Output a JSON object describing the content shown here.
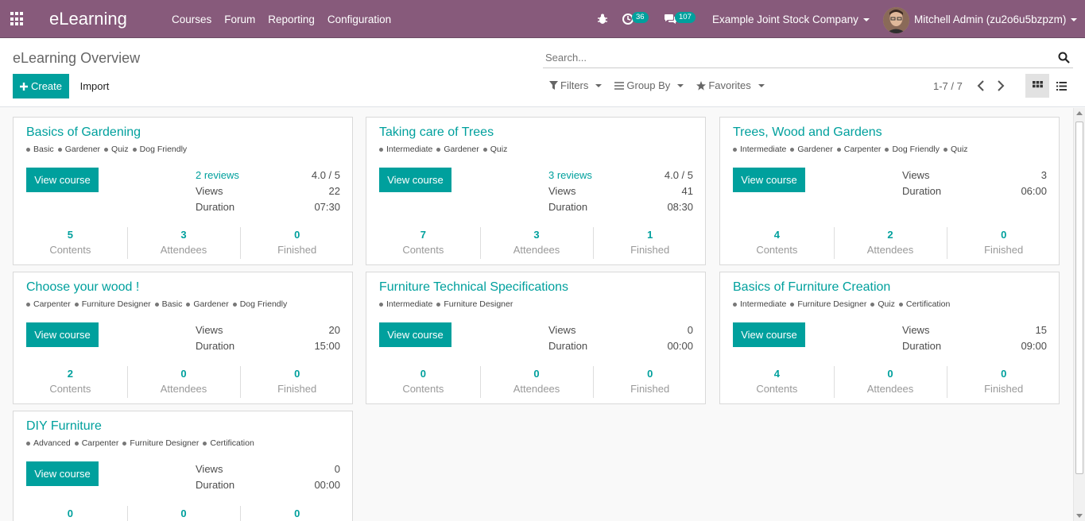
{
  "navbar": {
    "brand": "eLearning",
    "menu": [
      "Courses",
      "Forum",
      "Reporting",
      "Configuration"
    ],
    "activity_count": "36",
    "message_count": "107",
    "company": "Example Joint Stock Company",
    "user": "Mitchell Admin (zu2o6u5bzpzm)"
  },
  "control": {
    "breadcrumb": "eLearning Overview",
    "create_label": "Create",
    "import_label": "Import",
    "search_placeholder": "Search...",
    "filters_label": "Filters",
    "groupby_label": "Group By",
    "favorites_label": "Favorites",
    "pager": "1-7 / 7"
  },
  "labels": {
    "view_course": "View course",
    "views": "Views",
    "duration": "Duration",
    "contents": "Contents",
    "attendees": "Attendees",
    "finished": "Finished"
  },
  "courses": [
    {
      "title": "Basics of Gardening",
      "tags": [
        "Basic",
        "Gardener",
        "Quiz",
        "Dog Friendly"
      ],
      "reviews": "2 reviews",
      "rating": "4.0 / 5",
      "views": "22",
      "duration": "07:30",
      "contents": "5",
      "attendees": "3",
      "finished": "0"
    },
    {
      "title": "Taking care of Trees",
      "tags": [
        "Intermediate",
        "Gardener",
        "Quiz"
      ],
      "reviews": "3 reviews",
      "rating": "4.0 / 5",
      "views": "41",
      "duration": "08:30",
      "contents": "7",
      "attendees": "3",
      "finished": "1"
    },
    {
      "title": "Trees, Wood and Gardens",
      "tags": [
        "Intermediate",
        "Gardener",
        "Carpenter",
        "Dog Friendly",
        "Quiz"
      ],
      "views": "3",
      "duration": "06:00",
      "contents": "4",
      "attendees": "2",
      "finished": "0"
    },
    {
      "title": "Choose your wood !",
      "tags": [
        "Carpenter",
        "Furniture Designer",
        "Basic",
        "Gardener",
        "Dog Friendly"
      ],
      "views": "20",
      "duration": "15:00",
      "contents": "2",
      "attendees": "0",
      "finished": "0"
    },
    {
      "title": "Furniture Technical Specifications",
      "tags": [
        "Intermediate",
        "Furniture Designer"
      ],
      "views": "0",
      "duration": "00:00",
      "contents": "0",
      "attendees": "0",
      "finished": "0"
    },
    {
      "title": "Basics of Furniture Creation",
      "tags": [
        "Intermediate",
        "Furniture Designer",
        "Quiz",
        "Certification"
      ],
      "views": "15",
      "duration": "09:00",
      "contents": "4",
      "attendees": "0",
      "finished": "0"
    },
    {
      "title": "DIY Furniture",
      "tags": [
        "Advanced",
        "Carpenter",
        "Furniture Designer",
        "Certification"
      ],
      "views": "0",
      "duration": "00:00",
      "contents": "0",
      "attendees": "0",
      "finished": "0"
    }
  ]
}
